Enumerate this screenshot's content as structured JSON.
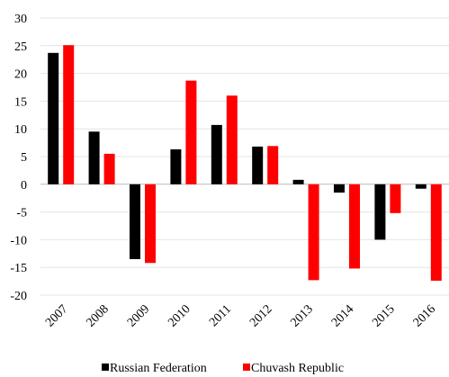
{
  "chart_data": {
    "type": "bar",
    "categories": [
      "2007",
      "2008",
      "2009",
      "2010",
      "2011",
      "2012",
      "2013",
      "2014",
      "2015",
      "2016"
    ],
    "series": [
      {
        "name": "Russian Federation",
        "color": "#000000",
        "values": [
          23.7,
          9.5,
          -13.5,
          6.3,
          10.7,
          6.8,
          0.8,
          -1.5,
          -10.0,
          -0.8
        ]
      },
      {
        "name": "Chuvash Republic",
        "color": "#ff0000",
        "values": [
          25.1,
          5.5,
          -14.2,
          18.7,
          16.0,
          6.9,
          -17.3,
          -15.2,
          -5.2,
          -17.4
        ]
      }
    ],
    "ylim": [
      -20,
      30
    ],
    "yticks": [
      -20,
      -15,
      -10,
      -5,
      0,
      5,
      10,
      15,
      20,
      25,
      30
    ],
    "grid": true,
    "legend": "bottom"
  }
}
